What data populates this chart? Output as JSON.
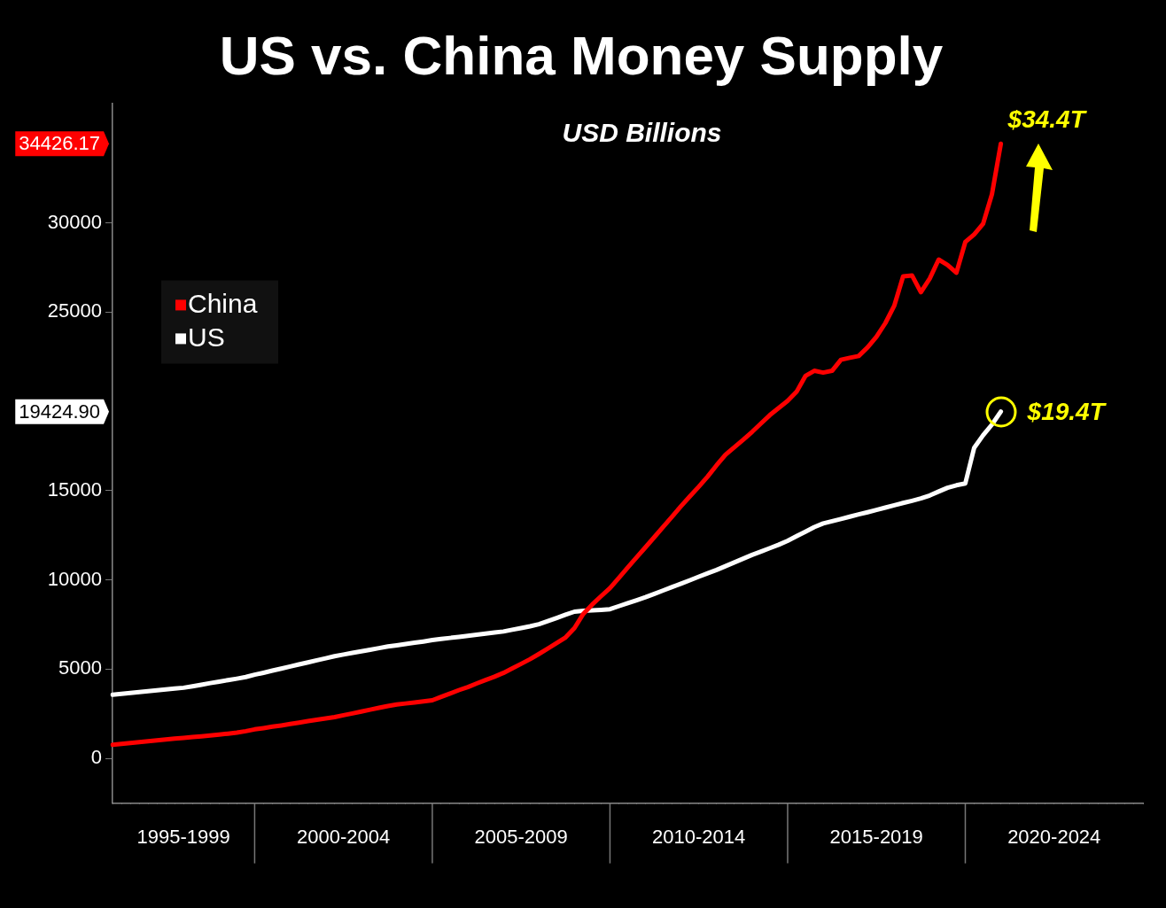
{
  "chart_data": {
    "type": "line",
    "title": "US vs. China Money Supply",
    "subtitle": "USD Billions",
    "categories": [
      null,
      null,
      null,
      null,
      null,
      null,
      null,
      null,
      "1995-1999",
      null,
      null,
      null,
      null,
      null,
      null,
      null,
      null,
      null,
      null,
      null,
      null,
      null,
      null,
      null,
      null,
      null,
      "2000-2004",
      null,
      null,
      null,
      null,
      null,
      null,
      null,
      null,
      null,
      null,
      null,
      null,
      null,
      null,
      null,
      null,
      null,
      null,
      null,
      "2005-2009",
      null,
      null,
      null,
      null,
      null,
      null,
      null,
      null,
      null,
      null,
      null,
      null,
      null,
      null,
      null,
      null,
      null,
      null,
      null,
      "2010-2014",
      null,
      null,
      null,
      null,
      null,
      null,
      null,
      null,
      null,
      null,
      null,
      null,
      null,
      null,
      null,
      null,
      null,
      null,
      null,
      "2015-2019",
      null,
      null,
      null,
      null,
      null,
      null,
      null,
      null,
      null,
      null,
      null,
      null,
      null,
      null,
      null,
      null,
      null,
      null,
      null,
      "2020-2024",
      null,
      null,
      null,
      null,
      null,
      null,
      null,
      null,
      null,
      null
    ],
    "ylim": [
      -2500,
      36700
    ],
    "yticks": [
      0,
      5000,
      10000,
      15000,
      25000,
      30000
    ],
    "legend": "top left",
    "series": [
      {
        "name": "China",
        "color": "#ff0000",
        "values": [
          770,
          820,
          870,
          920,
          970,
          1010,
          1060,
          1110,
          1150,
          1200,
          1240,
          1290,
          1340,
          1390,
          1450,
          1530,
          1630,
          1700,
          1780,
          1850,
          1930,
          2010,
          2090,
          2170,
          2240,
          2320,
          2420,
          2520,
          2630,
          2730,
          2840,
          2940,
          3020,
          3080,
          3140,
          3200,
          3260,
          3450,
          3640,
          3830,
          4000,
          4200,
          4390,
          4580,
          4790,
          5040,
          5300,
          5560,
          5850,
          6150,
          6460,
          6780,
          7300,
          8100,
          8620,
          9090,
          9540,
          10110,
          10690,
          11260,
          11830,
          12400,
          12980,
          13550,
          14130,
          14680,
          15220,
          15790,
          16420,
          17010,
          17430,
          17850,
          18290,
          18760,
          19230,
          19630,
          20030,
          20530,
          21420,
          21710,
          21610,
          21710,
          22330,
          22440,
          22540,
          23020,
          23620,
          24380,
          25350,
          27000,
          27050,
          26110,
          26880,
          27940,
          27640,
          27200,
          28920,
          29350,
          29940,
          31600,
          34426.17,
          null,
          null,
          null,
          null,
          null,
          null,
          null,
          null,
          null,
          null,
          null,
          null,
          null,
          null,
          null,
          null
        ]
      },
      {
        "name": "US",
        "color": "#ffffff",
        "values": [
          3570,
          3620,
          3670,
          3720,
          3770,
          3820,
          3870,
          3920,
          3960,
          4040,
          4130,
          4220,
          4300,
          4390,
          4470,
          4560,
          4690,
          4800,
          4920,
          5030,
          5150,
          5270,
          5380,
          5500,
          5610,
          5730,
          5820,
          5910,
          6000,
          6090,
          6180,
          6270,
          6340,
          6410,
          6480,
          6550,
          6630,
          6690,
          6750,
          6810,
          6870,
          6930,
          6990,
          7050,
          7110,
          7210,
          7300,
          7400,
          7520,
          7690,
          7870,
          8050,
          8220,
          8270,
          8290,
          8320,
          8360,
          8530,
          8700,
          8860,
          9030,
          9220,
          9410,
          9600,
          9790,
          9980,
          10180,
          10370,
          10560,
          10770,
          10980,
          11190,
          11400,
          11590,
          11780,
          11970,
          12190,
          12450,
          12700,
          12960,
          13160,
          13290,
          13410,
          13540,
          13670,
          13790,
          13920,
          14050,
          14180,
          14310,
          14430,
          14560,
          14730,
          14950,
          15160,
          15300,
          15400,
          17400,
          18100,
          18700,
          19424.9,
          null,
          null,
          null,
          null,
          null,
          null,
          null,
          null,
          null,
          null,
          null,
          null,
          null,
          null,
          null,
          null
        ]
      }
    ],
    "annotations": [
      "$34.4T",
      "$19.4T",
      "34426.17",
      "19424.90"
    ]
  }
}
